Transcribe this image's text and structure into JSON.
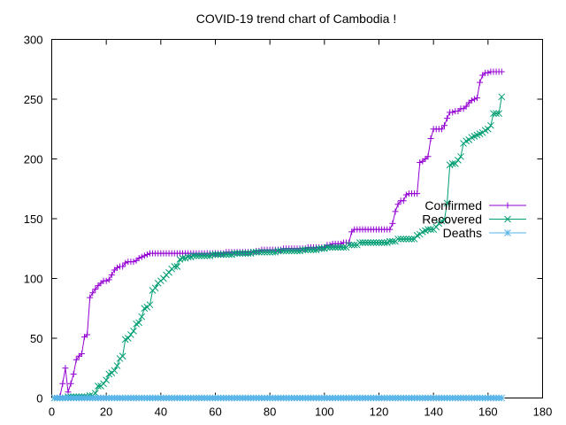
{
  "chart_data": {
    "type": "line",
    "title": "COVID-19 trend chart of Cambodia !",
    "xlabel": "",
    "ylabel": "",
    "xlim": [
      0,
      180
    ],
    "ylim": [
      0,
      300
    ],
    "xticks": [
      0,
      20,
      40,
      60,
      80,
      100,
      120,
      140,
      160,
      180
    ],
    "yticks": [
      0,
      50,
      100,
      150,
      200,
      250,
      300
    ],
    "grid": false,
    "legend_position": "right",
    "series": [
      {
        "name": "Confirmed",
        "color": "#9400d3",
        "marker": "plus",
        "points": [
          [
            1,
            0
          ],
          [
            2,
            0
          ],
          [
            3,
            1
          ],
          [
            4,
            12
          ],
          [
            5,
            25
          ],
          [
            6,
            5
          ],
          [
            7,
            12
          ],
          [
            8,
            20
          ],
          [
            9,
            32
          ],
          [
            10,
            35
          ],
          [
            11,
            37
          ],
          [
            12,
            51
          ],
          [
            13,
            53
          ],
          [
            14,
            84
          ],
          [
            15,
            88
          ],
          [
            16,
            91
          ],
          [
            17,
            94
          ],
          [
            18,
            96
          ],
          [
            19,
            98
          ],
          [
            20,
            98
          ],
          [
            21,
            99
          ],
          [
            22,
            103
          ],
          [
            23,
            107
          ],
          [
            24,
            109
          ],
          [
            25,
            110
          ],
          [
            26,
            110
          ],
          [
            27,
            113
          ],
          [
            28,
            114
          ],
          [
            29,
            114
          ],
          [
            30,
            114
          ],
          [
            31,
            115
          ],
          [
            32,
            117
          ],
          [
            33,
            118
          ],
          [
            34,
            119
          ],
          [
            35,
            120
          ],
          [
            36,
            121
          ],
          [
            37,
            121
          ],
          [
            38,
            121
          ],
          [
            39,
            121
          ],
          [
            40,
            121
          ],
          [
            41,
            121
          ],
          [
            42,
            121
          ],
          [
            43,
            121
          ],
          [
            44,
            121
          ],
          [
            45,
            121
          ],
          [
            46,
            121
          ],
          [
            47,
            121
          ],
          [
            48,
            121
          ],
          [
            49,
            121
          ],
          [
            50,
            121
          ],
          [
            51,
            121
          ],
          [
            52,
            121
          ],
          [
            53,
            121
          ],
          [
            54,
            121
          ],
          [
            55,
            121
          ],
          [
            56,
            121
          ],
          [
            57,
            121
          ],
          [
            58,
            121
          ],
          [
            59,
            121
          ],
          [
            60,
            121
          ],
          [
            61,
            121
          ],
          [
            62,
            121
          ],
          [
            63,
            121
          ],
          [
            64,
            122
          ],
          [
            65,
            122
          ],
          [
            66,
            122
          ],
          [
            67,
            122
          ],
          [
            68,
            122
          ],
          [
            69,
            122
          ],
          [
            70,
            122
          ],
          [
            71,
            122
          ],
          [
            72,
            122
          ],
          [
            73,
            122
          ],
          [
            74,
            122
          ],
          [
            75,
            123
          ],
          [
            76,
            123
          ],
          [
            77,
            124
          ],
          [
            78,
            124
          ],
          [
            79,
            124
          ],
          [
            80,
            124
          ],
          [
            81,
            124
          ],
          [
            82,
            124
          ],
          [
            83,
            124
          ],
          [
            84,
            124
          ],
          [
            85,
            125
          ],
          [
            86,
            125
          ],
          [
            87,
            125
          ],
          [
            88,
            125
          ],
          [
            89,
            125
          ],
          [
            90,
            125
          ],
          [
            91,
            125
          ],
          [
            92,
            125
          ],
          [
            93,
            125
          ],
          [
            94,
            126
          ],
          [
            95,
            126
          ],
          [
            96,
            126
          ],
          [
            97,
            126
          ],
          [
            98,
            126
          ],
          [
            99,
            126
          ],
          [
            100,
            126
          ],
          [
            101,
            128
          ],
          [
            102,
            128
          ],
          [
            103,
            129
          ],
          [
            104,
            129
          ],
          [
            105,
            129
          ],
          [
            106,
            129
          ],
          [
            107,
            130
          ],
          [
            108,
            130
          ],
          [
            109,
            130
          ],
          [
            110,
            139
          ],
          [
            111,
            141
          ],
          [
            112,
            141
          ],
          [
            113,
            141
          ],
          [
            114,
            141
          ],
          [
            115,
            141
          ],
          [
            116,
            141
          ],
          [
            117,
            141
          ],
          [
            118,
            141
          ],
          [
            119,
            141
          ],
          [
            120,
            141
          ],
          [
            121,
            141
          ],
          [
            122,
            141
          ],
          [
            123,
            141
          ],
          [
            124,
            141
          ],
          [
            125,
            146
          ],
          [
            126,
            156
          ],
          [
            127,
            162
          ],
          [
            128,
            165
          ],
          [
            129,
            165
          ],
          [
            130,
            170
          ],
          [
            131,
            171
          ],
          [
            132,
            171
          ],
          [
            133,
            171
          ],
          [
            134,
            171
          ],
          [
            135,
            197
          ],
          [
            136,
            198
          ],
          [
            137,
            200
          ],
          [
            138,
            202
          ],
          [
            139,
            217
          ],
          [
            140,
            225
          ],
          [
            141,
            225
          ],
          [
            142,
            225
          ],
          [
            143,
            225
          ],
          [
            144,
            228
          ],
          [
            145,
            234
          ],
          [
            146,
            239
          ],
          [
            147,
            239
          ],
          [
            148,
            240
          ],
          [
            149,
            240
          ],
          [
            150,
            242
          ],
          [
            151,
            242
          ],
          [
            152,
            244
          ],
          [
            153,
            247
          ],
          [
            154,
            249
          ],
          [
            155,
            250
          ],
          [
            156,
            251
          ],
          [
            157,
            264
          ],
          [
            158,
            270
          ],
          [
            159,
            272
          ],
          [
            160,
            272
          ],
          [
            161,
            273
          ],
          [
            162,
            273
          ],
          [
            163,
            273
          ],
          [
            164,
            273
          ],
          [
            165,
            273
          ]
        ]
      },
      {
        "name": "Recovered",
        "color": "#009e73",
        "marker": "cross",
        "points": [
          [
            1,
            0
          ],
          [
            2,
            0
          ],
          [
            3,
            0
          ],
          [
            4,
            0
          ],
          [
            5,
            0
          ],
          [
            6,
            1
          ],
          [
            7,
            1
          ],
          [
            8,
            1
          ],
          [
            9,
            1
          ],
          [
            10,
            1
          ],
          [
            11,
            1
          ],
          [
            12,
            1
          ],
          [
            13,
            1
          ],
          [
            14,
            2
          ],
          [
            15,
            2
          ],
          [
            16,
            4
          ],
          [
            17,
            10
          ],
          [
            18,
            10
          ],
          [
            19,
            12
          ],
          [
            20,
            15
          ],
          [
            21,
            20
          ],
          [
            22,
            21
          ],
          [
            23,
            23
          ],
          [
            24,
            27
          ],
          [
            25,
            33
          ],
          [
            26,
            35
          ],
          [
            27,
            49
          ],
          [
            28,
            50
          ],
          [
            29,
            53
          ],
          [
            30,
            56
          ],
          [
            31,
            62
          ],
          [
            32,
            63
          ],
          [
            33,
            68
          ],
          [
            34,
            75
          ],
          [
            35,
            76
          ],
          [
            36,
            78
          ],
          [
            37,
            90
          ],
          [
            38,
            92
          ],
          [
            39,
            96
          ],
          [
            40,
            98
          ],
          [
            41,
            100
          ],
          [
            42,
            103
          ],
          [
            43,
            105
          ],
          [
            44,
            108
          ],
          [
            45,
            110
          ],
          [
            46,
            110
          ],
          [
            47,
            116
          ],
          [
            48,
            117
          ],
          [
            49,
            117
          ],
          [
            50,
            118
          ],
          [
            51,
            118
          ],
          [
            52,
            119
          ],
          [
            53,
            119
          ],
          [
            54,
            119
          ],
          [
            55,
            119
          ],
          [
            56,
            119
          ],
          [
            57,
            119
          ],
          [
            58,
            119
          ],
          [
            59,
            120
          ],
          [
            60,
            120
          ],
          [
            61,
            120
          ],
          [
            62,
            120
          ],
          [
            63,
            120
          ],
          [
            64,
            120
          ],
          [
            65,
            120
          ],
          [
            66,
            120
          ],
          [
            67,
            121
          ],
          [
            68,
            121
          ],
          [
            69,
            121
          ],
          [
            70,
            121
          ],
          [
            71,
            121
          ],
          [
            72,
            121
          ],
          [
            73,
            121
          ],
          [
            74,
            122
          ],
          [
            75,
            122
          ],
          [
            76,
            122
          ],
          [
            77,
            122
          ],
          [
            78,
            122
          ],
          [
            79,
            122
          ],
          [
            80,
            122
          ],
          [
            81,
            122
          ],
          [
            82,
            122
          ],
          [
            83,
            123
          ],
          [
            84,
            123
          ],
          [
            85,
            123
          ],
          [
            86,
            123
          ],
          [
            87,
            123
          ],
          [
            88,
            123
          ],
          [
            89,
            123
          ],
          [
            90,
            123
          ],
          [
            91,
            123
          ],
          [
            92,
            124
          ],
          [
            93,
            124
          ],
          [
            94,
            124
          ],
          [
            95,
            124
          ],
          [
            96,
            124
          ],
          [
            97,
            124
          ],
          [
            98,
            125
          ],
          [
            99,
            125
          ],
          [
            100,
            125
          ],
          [
            101,
            126
          ],
          [
            102,
            126
          ],
          [
            103,
            126
          ],
          [
            104,
            126
          ],
          [
            105,
            126
          ],
          [
            106,
            126
          ],
          [
            107,
            126
          ],
          [
            108,
            126
          ],
          [
            109,
            128
          ],
          [
            110,
            128
          ],
          [
            111,
            128
          ],
          [
            112,
            128
          ],
          [
            113,
            130
          ],
          [
            114,
            130
          ],
          [
            115,
            130
          ],
          [
            116,
            130
          ],
          [
            117,
            130
          ],
          [
            118,
            130
          ],
          [
            119,
            130
          ],
          [
            120,
            130
          ],
          [
            121,
            130
          ],
          [
            122,
            130
          ],
          [
            123,
            130
          ],
          [
            124,
            131
          ],
          [
            125,
            131
          ],
          [
            126,
            131
          ],
          [
            127,
            133
          ],
          [
            128,
            133
          ],
          [
            129,
            133
          ],
          [
            130,
            133
          ],
          [
            131,
            133
          ],
          [
            132,
            133
          ],
          [
            133,
            133
          ],
          [
            134,
            136
          ],
          [
            135,
            137
          ],
          [
            136,
            139
          ],
          [
            137,
            140
          ],
          [
            138,
            141
          ],
          [
            139,
            141
          ],
          [
            140,
            141
          ],
          [
            141,
            143
          ],
          [
            142,
            146
          ],
          [
            143,
            148
          ],
          [
            144,
            149
          ],
          [
            145,
            163
          ],
          [
            146,
            195
          ],
          [
            147,
            196
          ],
          [
            148,
            196
          ],
          [
            149,
            199
          ],
          [
            150,
            202
          ],
          [
            151,
            213
          ],
          [
            152,
            215
          ],
          [
            153,
            216
          ],
          [
            154,
            218
          ],
          [
            155,
            219
          ],
          [
            156,
            220
          ],
          [
            157,
            221
          ],
          [
            158,
            222
          ],
          [
            159,
            224
          ],
          [
            160,
            225
          ],
          [
            161,
            228
          ],
          [
            162,
            238
          ],
          [
            163,
            238
          ],
          [
            164,
            238
          ],
          [
            165,
            252
          ]
        ]
      },
      {
        "name": "Deaths",
        "color": "#56b4e9",
        "marker": "star",
        "constant_value": 0,
        "x_range": [
          1,
          165
        ]
      }
    ]
  }
}
